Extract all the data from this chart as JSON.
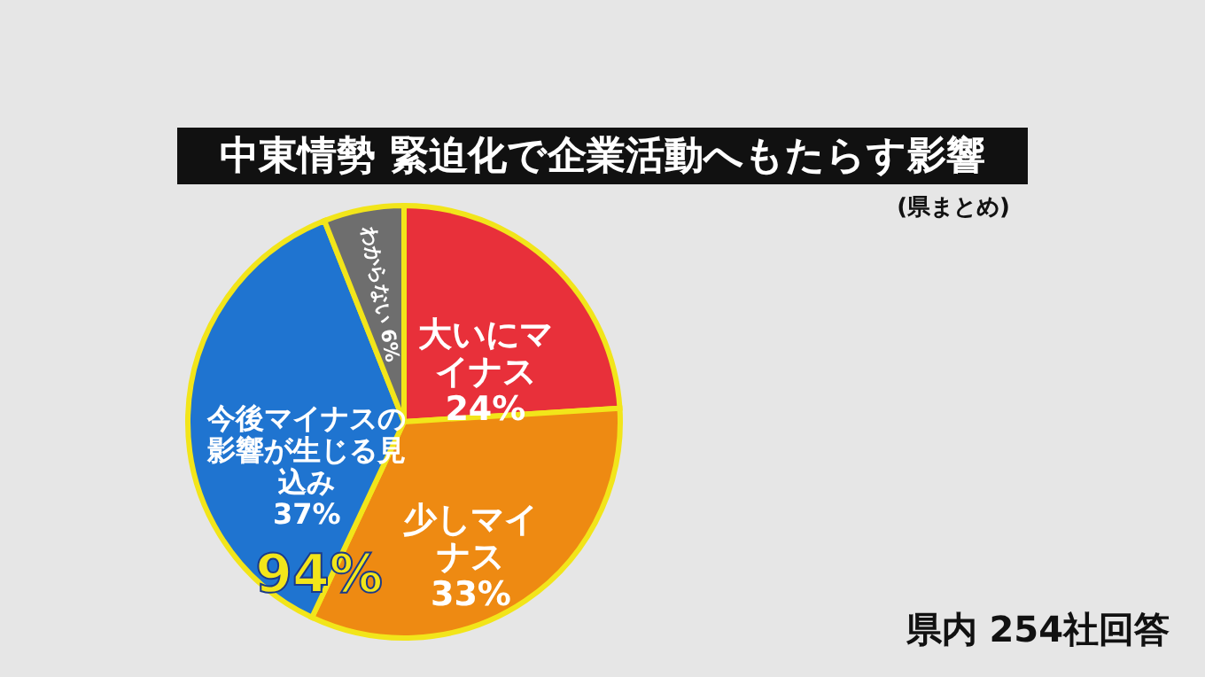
{
  "chart_data": {
    "type": "pie",
    "title": "中東情勢 緊迫化で企業活動へもたらす影響",
    "subtitle": "(県まとめ)",
    "categories": [
      "大いにマイナス",
      "少しマイナス",
      "今後マイナスの影響が生じる見込み",
      "わからない"
    ],
    "values": [
      24,
      33,
      37,
      6
    ],
    "value_labels": [
      "24%",
      "33%",
      "37%",
      "6%"
    ],
    "colors": [
      "#e8303a",
      "#ee8a12",
      "#1f74d0",
      "#6e6e6e"
    ],
    "annotations": [
      "94%",
      "県内 254社回答"
    ]
  }
}
